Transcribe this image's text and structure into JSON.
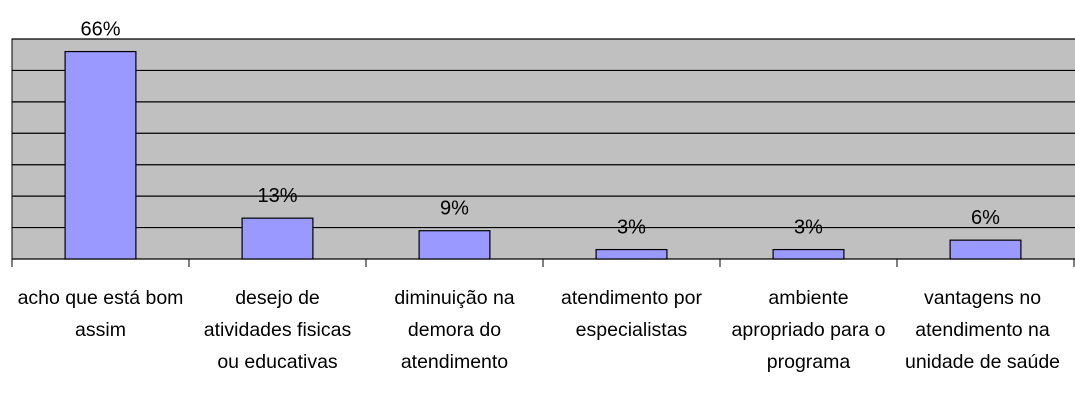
{
  "chart_data": {
    "type": "bar",
    "categories": [
      "acho que está bom assim",
      "desejo de atividades fisicas ou educativas",
      "diminuição na demora do atendimento",
      "atendimento por especialistas",
      "ambiente apropriado para o programa",
      "vantagens no atendimento na unidade de saúde"
    ],
    "values": [
      66,
      13,
      9,
      3,
      3,
      6
    ],
    "value_labels": [
      "66%",
      "13%",
      "9%",
      "3%",
      "3%",
      "6%"
    ],
    "color": "#9999ff",
    "ylim": [
      0,
      70
    ],
    "yticks": [
      0,
      10,
      20,
      30,
      40,
      50,
      60,
      70
    ],
    "grid": true
  }
}
